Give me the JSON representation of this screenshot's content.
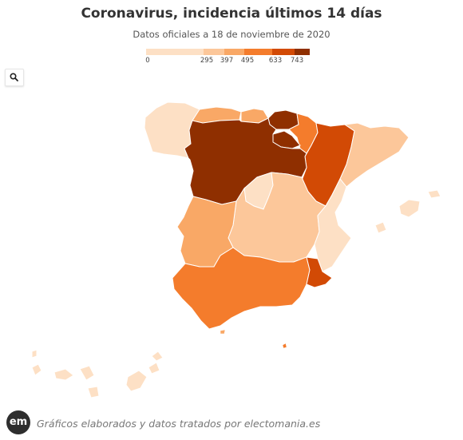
{
  "header": {
    "title": "Coronavirus, incidencia últimos 14 días",
    "subtitle": "Datos oficiales a 18 de noviembre de 2020"
  },
  "legend": {
    "ticks": [
      "0",
      "295",
      "397",
      "495",
      "633",
      "743"
    ],
    "bins": [
      {
        "from": 0,
        "to": 295,
        "color": "#fde0c5"
      },
      {
        "from": 295,
        "to": 397,
        "color": "#fcc79a"
      },
      {
        "from": 397,
        "to": 495,
        "color": "#f9a866"
      },
      {
        "from": 495,
        "to": 633,
        "color": "#f47c2c"
      },
      {
        "from": 633,
        "to": 743,
        "color": "#d24a05"
      },
      {
        "from": 743,
        "to": 800,
        "color": "#8f2f00"
      }
    ]
  },
  "toolbar": {
    "search_icon": "search-icon"
  },
  "map": {
    "regions": [
      {
        "name": "Galicia",
        "bin": 0
      },
      {
        "name": "Asturias",
        "bin": 2
      },
      {
        "name": "Cantabria",
        "bin": 2
      },
      {
        "name": "País Vasco",
        "bin": 5
      },
      {
        "name": "Navarra",
        "bin": 3
      },
      {
        "name": "La Rioja",
        "bin": 5
      },
      {
        "name": "Aragón",
        "bin": 4
      },
      {
        "name": "Cataluña",
        "bin": 1
      },
      {
        "name": "Castilla y León",
        "bin": 5
      },
      {
        "name": "Madrid",
        "bin": 0
      },
      {
        "name": "Castilla-La Mancha",
        "bin": 1
      },
      {
        "name": "Comunitat Valenciana",
        "bin": 0
      },
      {
        "name": "Extremadura",
        "bin": 2
      },
      {
        "name": "Andalucía",
        "bin": 3
      },
      {
        "name": "Región de Murcia",
        "bin": 4
      },
      {
        "name": "Illes Balears",
        "bin": 0
      },
      {
        "name": "Canarias",
        "bin": 0
      },
      {
        "name": "Ceuta",
        "bin": 2
      },
      {
        "name": "Melilla",
        "bin": 3
      }
    ]
  },
  "footer": {
    "logo_text": "em",
    "text": "Gráficos elaborados y datos tratados por electomania.es"
  }
}
